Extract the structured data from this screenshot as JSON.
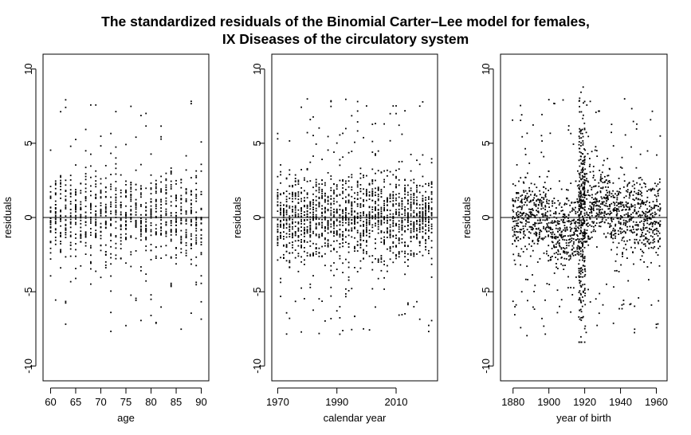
{
  "chart_data": {
    "title_lines": [
      "The standardized residuals of the Binomial Carter–Lee model for females,",
      "IX Diseases of the circulatory system"
    ],
    "panels": [
      {
        "type": "scatter",
        "xlabel": "age",
        "ylabel": "residuals",
        "xlim": [
          58.5,
          91.5
        ],
        "xticks": [
          60,
          65,
          70,
          75,
          80,
          85,
          90
        ],
        "ylim": [
          -11,
          11
        ],
        "yticks": [
          -10,
          -5,
          0,
          5,
          10
        ],
        "hline": 0,
        "x_grid": {
          "start": 60,
          "end": 90,
          "step": 1
        },
        "y_range": [
          -8.4,
          10.1
        ]
      },
      {
        "type": "scatter",
        "xlabel": "calendar year",
        "ylabel": "residuals",
        "xlim": [
          1968,
          2024
        ],
        "xticks": [
          1970,
          1990,
          2010
        ],
        "ylim": [
          -11,
          11
        ],
        "yticks": [
          -10,
          -5,
          0,
          5,
          10
        ],
        "hline": 0,
        "x_grid": {
          "start": 1970,
          "end": 2022,
          "step": 1
        },
        "y_range": [
          -8.4,
          10.1
        ]
      },
      {
        "type": "scatter",
        "xlabel": "year of birth",
        "ylabel": "residuals",
        "xlim": [
          1873,
          1966
        ],
        "xticks": [
          1880,
          1900,
          1920,
          1940,
          1960
        ],
        "ylim": [
          -11,
          11
        ],
        "yticks": [
          -10,
          -5,
          0,
          5,
          10
        ],
        "hline": 0,
        "x_grid": {
          "start": 1880,
          "end": 1962,
          "step": 1
        },
        "y_range": [
          -8.4,
          10.1
        ]
      }
    ]
  }
}
